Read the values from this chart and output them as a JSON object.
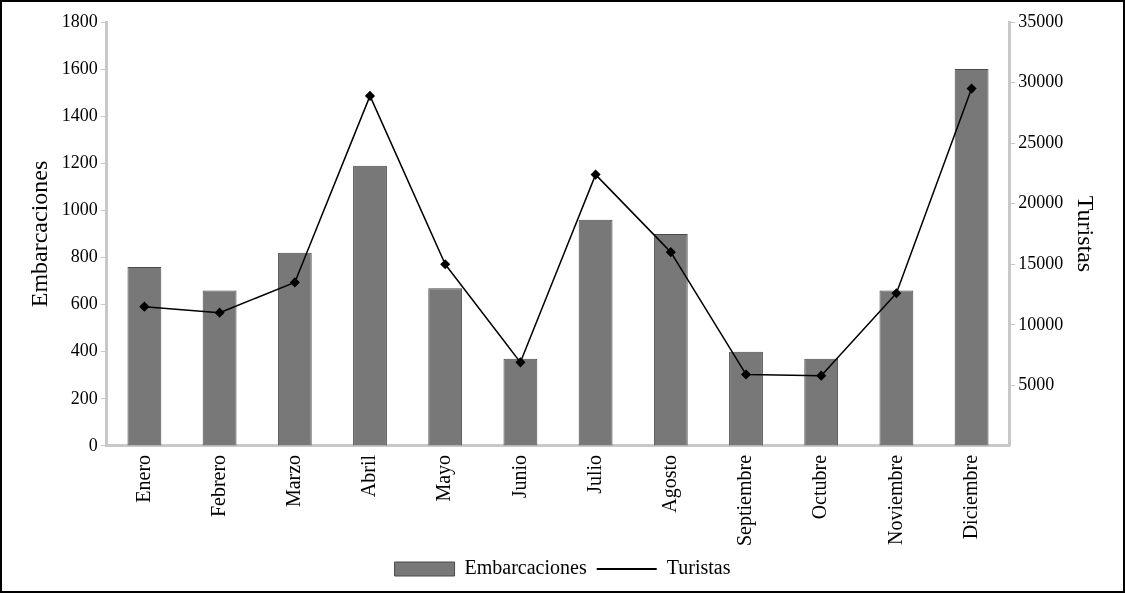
{
  "chart_data": {
    "type": "bar",
    "ylabel": "Embarcaciones",
    "y2label": "Turistas",
    "categories": [
      "Enero",
      "Febrero",
      "Marzo",
      "Abril",
      "Mayo",
      "Junio",
      "Julio",
      "Agosto",
      "Septiembre",
      "Octubre",
      "Noviembre",
      "Diciembre"
    ],
    "series": [
      {
        "name": "Embarcaciones",
        "color": "#787878",
        "values": [
          760,
          660,
          820,
          1190,
          670,
          370,
          960,
          900,
          400,
          370,
          660,
          1600
        ]
      },
      {
        "name": "Turistas",
        "type": "line",
        "axis": "y2",
        "color": "#000000",
        "marker": "diamond",
        "values": [
          11500,
          11000,
          13500,
          28900,
          15000,
          6900,
          22400,
          16000,
          5900,
          5800,
          12600,
          29500
        ]
      }
    ],
    "ylim": [
      0,
      1800
    ],
    "yticks": [
      0,
      200,
      400,
      600,
      800,
      1000,
      1200,
      1400,
      1600,
      1800
    ],
    "y2lim": [
      0,
      35000
    ],
    "y2ticks": [
      5000,
      10000,
      15000,
      20000,
      25000,
      30000,
      35000
    ],
    "grid": false,
    "legend": "bottom"
  }
}
